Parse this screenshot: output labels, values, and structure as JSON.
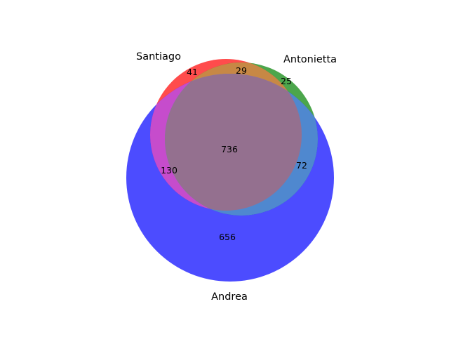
{
  "chart_data": {
    "type": "venn",
    "sets": [
      {
        "name": "Santiago",
        "color": "#ff0000"
      },
      {
        "name": "Antonietta",
        "color": "#008000"
      },
      {
        "name": "Andrea",
        "color": "#0000ff"
      }
    ],
    "regions": {
      "santiago_only": "41",
      "antonietta_only": "25",
      "andrea_only": "656",
      "santiago_antonietta": "29",
      "santiago_andrea": "130",
      "antonietta_andrea": "72",
      "all_three": "736"
    }
  }
}
